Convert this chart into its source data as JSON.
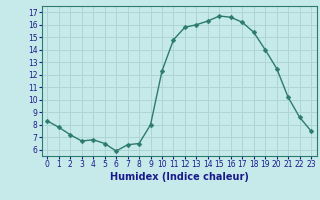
{
  "x": [
    0,
    1,
    2,
    3,
    4,
    5,
    6,
    7,
    8,
    9,
    10,
    11,
    12,
    13,
    14,
    15,
    16,
    17,
    18,
    19,
    20,
    21,
    22,
    23
  ],
  "y": [
    8.3,
    7.8,
    7.2,
    6.7,
    6.8,
    6.5,
    5.9,
    6.4,
    6.5,
    8.0,
    12.3,
    14.8,
    15.8,
    16.0,
    16.3,
    16.7,
    16.6,
    16.2,
    15.4,
    14.0,
    12.5,
    10.2,
    8.6,
    7.5
  ],
  "xlabel": "Humidex (Indice chaleur)",
  "ylim": [
    5.5,
    17.5
  ],
  "xlim": [
    -0.5,
    23.5
  ],
  "yticks": [
    6,
    7,
    8,
    9,
    10,
    11,
    12,
    13,
    14,
    15,
    16,
    17
  ],
  "xtick_labels": [
    "0",
    "1",
    "2",
    "3",
    "4",
    "5",
    "6",
    "7",
    "8",
    "9",
    "10",
    "11",
    "12",
    "13",
    "14",
    "15",
    "16",
    "17",
    "18",
    "19",
    "20",
    "21",
    "22",
    "23"
  ],
  "line_color": "#2d7a6e",
  "marker_color": "#2d7a6e",
  "bg_color": "#c6eaea",
  "grid_color": "#aed4d4",
  "xlabel_color": "#1a1a8c",
  "tick_label_color": "#1a1a8c"
}
